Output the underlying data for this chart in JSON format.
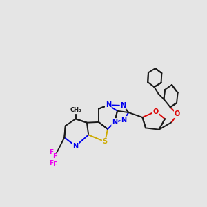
{
  "bg_color": "#e5e5e5",
  "bond_color": "#1a1a1a",
  "N_color": "#0000ee",
  "S_color": "#ccaa00",
  "O_color": "#dd0000",
  "F_color": "#ee00ee",
  "lw": 1.4,
  "dbo": 0.01,
  "fs": 7.0
}
